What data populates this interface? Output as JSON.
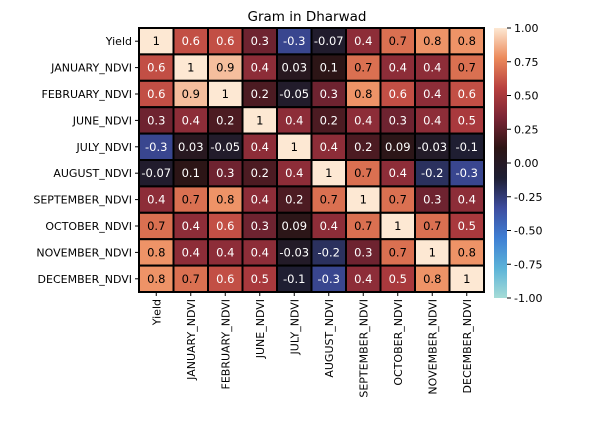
{
  "chart_data": {
    "type": "heatmap",
    "title": "Gram in Dharwad",
    "rows": [
      "Yield",
      "JANUARY_NDVI",
      "FEBRUARY_NDVI",
      "JUNE_NDVI",
      "JULY_NDVI",
      "AUGUST_NDVI",
      "SEPTEMBER_NDVI",
      "OCTOBER_NDVI",
      "NOVEMBER_NDVI",
      "DECEMBER_NDVI"
    ],
    "columns": [
      "Yield",
      "JANUARY_NDVI",
      "FEBRUARY_NDVI",
      "JUNE_NDVI",
      "JULY_NDVI",
      "AUGUST_NDVI",
      "SEPTEMBER_NDVI",
      "OCTOBER_NDVI",
      "NOVEMBER_NDVI",
      "DECEMBER_NDVI"
    ],
    "values": [
      [
        1,
        0.6,
        0.6,
        0.3,
        -0.3,
        -0.07,
        0.4,
        0.7,
        0.8,
        0.8
      ],
      [
        0.6,
        1,
        0.9,
        0.4,
        0.03,
        0.1,
        0.7,
        0.4,
        0.4,
        0.7
      ],
      [
        0.6,
        0.9,
        1,
        0.2,
        -0.05,
        0.3,
        0.8,
        0.6,
        0.4,
        0.6
      ],
      [
        0.3,
        0.4,
        0.2,
        1,
        0.4,
        0.2,
        0.4,
        0.3,
        0.4,
        0.5
      ],
      [
        -0.3,
        0.03,
        -0.05,
        0.4,
        1,
        0.4,
        0.2,
        0.09,
        -0.03,
        -0.1
      ],
      [
        -0.07,
        0.1,
        0.3,
        0.2,
        0.4,
        1,
        0.7,
        0.4,
        -0.2,
        -0.3
      ],
      [
        0.4,
        0.7,
        0.8,
        0.4,
        0.2,
        0.7,
        1,
        0.7,
        0.3,
        0.4
      ],
      [
        0.7,
        0.4,
        0.6,
        0.3,
        0.09,
        0.4,
        0.7,
        1,
        0.7,
        0.5
      ],
      [
        0.8,
        0.4,
        0.4,
        0.4,
        -0.03,
        -0.2,
        0.3,
        0.7,
        1,
        0.8
      ],
      [
        0.8,
        0.7,
        0.6,
        0.5,
        -0.1,
        -0.3,
        0.4,
        0.5,
        0.8,
        1
      ]
    ],
    "colorbar": {
      "vmin": -1.0,
      "vmax": 1.0,
      "ticks": [
        "-1.00",
        "-0.75",
        "-0.50",
        "-0.25",
        "0.00",
        "0.25",
        "0.50",
        "0.75",
        "1.00"
      ],
      "colormap": "icefire",
      "stops": [
        "#a6dcd7",
        "#5bb3d8",
        "#3f7fd4",
        "#3e4d9f",
        "#1e1e33",
        "#2d1515",
        "#7a2535",
        "#b8403f",
        "#ec8a5b",
        "#fde8d3"
      ]
    },
    "cell_border_color": "#000000",
    "xtick_rotation": "vertical"
  }
}
